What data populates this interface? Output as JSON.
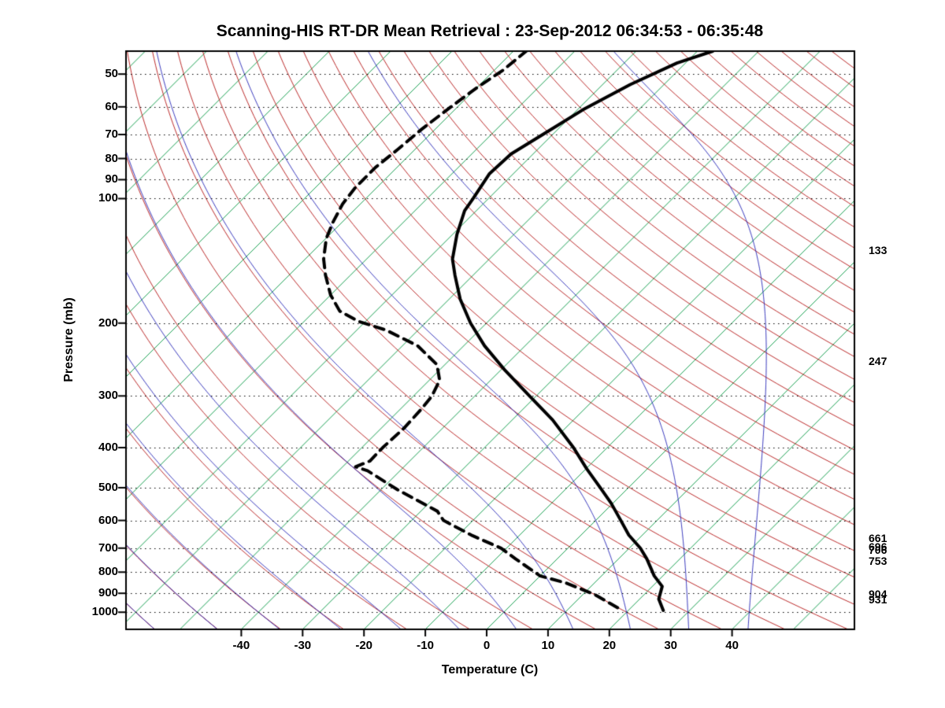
{
  "page": {
    "background": "#ffffff"
  },
  "chart_data": {
    "type": "line",
    "variant": "skew-t-log-p-sounding",
    "title": "Scanning-HIS RT-DR Mean Retrieval : 23-Sep-2012 06:34:53 - 06:35:48",
    "xlabel": "Temperature (C)",
    "ylabel": "Pressure (mb)",
    "x_tick_values": [
      -40,
      -30,
      -20,
      -10,
      0,
      10,
      20,
      30,
      40
    ],
    "y_tick_values": [
      50,
      60,
      70,
      80,
      90,
      100,
      200,
      300,
      400,
      500,
      600,
      700,
      800,
      900,
      1000
    ],
    "pressure_range_mb": [
      44,
      1100
    ],
    "surface_temp_range_c": [
      -58.8,
      60
    ],
    "skew_degrees": 45,
    "grid": {
      "style": "dotted",
      "at_pressures": [
        50,
        60,
        70,
        80,
        90,
        100,
        200,
        300,
        400,
        500,
        600,
        700,
        800,
        900,
        1000
      ]
    },
    "background_lines": {
      "isotherms_c": {
        "color": "#009640",
        "from": -160,
        "to": 60,
        "step": 10
      },
      "dry_adiabats_theta_c": {
        "color": "#b41414",
        "from": -60,
        "to": 300,
        "step": 10
      },
      "moist_adiabats_thetaw_c": {
        "color": "#1e1eb4",
        "from": -60,
        "to": 40,
        "step": 10
      }
    },
    "series": [
      {
        "name": "temperature",
        "line": "solid",
        "color": "#000000",
        "width": 4,
        "points_p_t": [
          [
            990,
            25.7
          ],
          [
            929,
            23.1
          ],
          [
            866,
            21.6
          ],
          [
            817,
            18.6
          ],
          [
            743,
            14.6
          ],
          [
            700,
            11.8
          ],
          [
            651,
            7.8
          ],
          [
            600,
            4.1
          ],
          [
            545,
            -0.3
          ],
          [
            500,
            -4.6
          ],
          [
            450,
            -9.9
          ],
          [
            400,
            -15.5
          ],
          [
            343,
            -23.4
          ],
          [
            300,
            -31.1
          ],
          [
            259,
            -39.5
          ],
          [
            227,
            -46.6
          ],
          [
            200,
            -52.6
          ],
          [
            175,
            -58.2
          ],
          [
            153,
            -63.0
          ],
          [
            140,
            -66.0
          ],
          [
            122,
            -69.3
          ],
          [
            107,
            -71.9
          ],
          [
            100,
            -72.5
          ],
          [
            87,
            -73.9
          ],
          [
            78,
            -73.6
          ],
          [
            70,
            -71.6
          ],
          [
            61,
            -69.1
          ],
          [
            53,
            -65.5
          ],
          [
            47,
            -61.4
          ],
          [
            44,
            -57.5
          ]
        ]
      },
      {
        "name": "dewpoint",
        "line": "dashed",
        "color": "#000000",
        "width": 4,
        "points_p_t": [
          [
            975,
            17.8
          ],
          [
            905,
            11.8
          ],
          [
            850,
            5.4
          ],
          [
            817,
            0.0
          ],
          [
            743,
            -6.8
          ],
          [
            700,
            -10.9
          ],
          [
            653,
            -17.6
          ],
          [
            600,
            -24.8
          ],
          [
            570,
            -27.3
          ],
          [
            505,
            -37.4
          ],
          [
            455,
            -45.3
          ],
          [
            445,
            -47.9
          ],
          [
            431,
            -46.5
          ],
          [
            400,
            -46.6
          ],
          [
            358,
            -46.3
          ],
          [
            322,
            -46.6
          ],
          [
            300,
            -47.0
          ],
          [
            275,
            -48.3
          ],
          [
            252,
            -51.3
          ],
          [
            227,
            -57.5
          ],
          [
            208,
            -65.2
          ],
          [
            198,
            -71.2
          ],
          [
            187,
            -75.9
          ],
          [
            171,
            -80.0
          ],
          [
            153,
            -84.1
          ],
          [
            140,
            -87.0
          ],
          [
            125,
            -89.9
          ],
          [
            114,
            -91.5
          ],
          [
            103,
            -92.9
          ],
          [
            94,
            -93.5
          ],
          [
            84,
            -93.5
          ],
          [
            76,
            -92.8
          ],
          [
            68,
            -92.2
          ],
          [
            60,
            -91.1
          ],
          [
            54,
            -90.0
          ],
          [
            49,
            -88.6
          ],
          [
            44,
            -87.9
          ]
        ]
      }
    ],
    "right_pressure_labels": [
      "133",
      "247",
      "661",
      "696",
      "706",
      "753",
      "904",
      "931"
    ]
  }
}
